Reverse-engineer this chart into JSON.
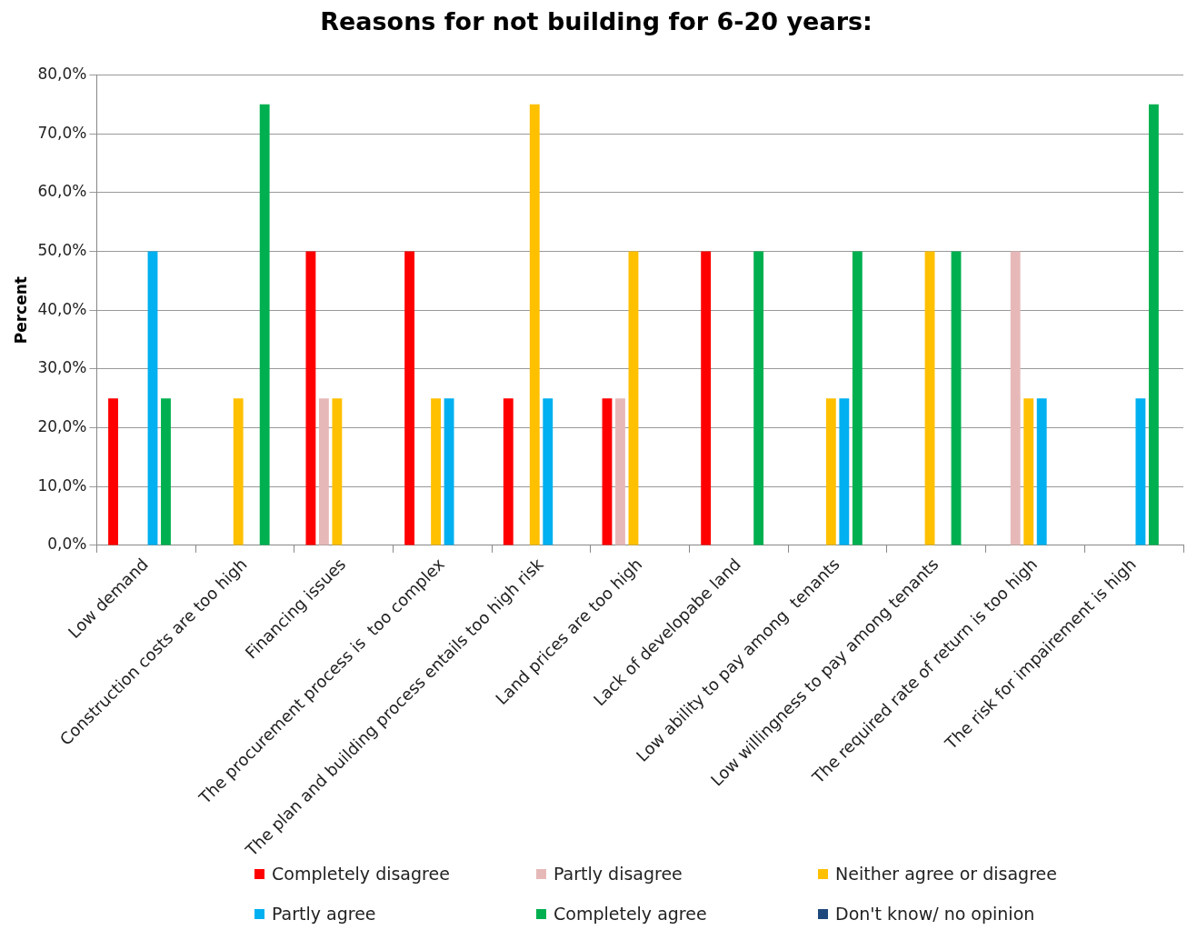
{
  "chart_data": {
    "type": "bar",
    "title": "Reasons for not building for 6-20 years:",
    "ylabel": "Percent",
    "categories": [
      "Low demand",
      "Construction costs are too high",
      "Financing issues",
      "The procurement process is  too complex",
      "The plan and building process entails too high risk",
      "Land prices are too high",
      "Lack of developabe land",
      "Low ability to pay among  tenants",
      "Low willingness to pay among tenants",
      "The required rate of return is too high",
      "The risk for impairement is high"
    ],
    "series": [
      {
        "name": "Completely disagree",
        "color": "#ff0000",
        "values": [
          25,
          0,
          50,
          50,
          25,
          25,
          50,
          0,
          0,
          0,
          0
        ]
      },
      {
        "name": "Partly disagree",
        "color": "#e6b9b8",
        "values": [
          0,
          0,
          25,
          0,
          0,
          25,
          0,
          0,
          0,
          50,
          0
        ]
      },
      {
        "name": "Neither agree or disagree",
        "color": "#ffc000",
        "values": [
          0,
          25,
          25,
          25,
          75,
          50,
          0,
          25,
          50,
          25,
          0
        ]
      },
      {
        "name": "Partly agree",
        "color": "#00b0f0",
        "values": [
          50,
          0,
          0,
          25,
          25,
          0,
          0,
          25,
          0,
          25,
          25
        ]
      },
      {
        "name": "Completely agree",
        "color": "#00b050",
        "values": [
          25,
          75,
          0,
          0,
          0,
          0,
          50,
          50,
          50,
          0,
          75
        ]
      },
      {
        "name": "Don't know/ no opinion",
        "color": "#1f497d",
        "values": [
          0,
          0,
          0,
          0,
          0,
          0,
          0,
          0,
          0,
          0,
          0
        ]
      }
    ],
    "ylim": [
      0,
      80
    ],
    "yticks": [
      {
        "value": 0,
        "label": "0,0%"
      },
      {
        "value": 10,
        "label": "10,0%"
      },
      {
        "value": 20,
        "label": "20,0%"
      },
      {
        "value": 30,
        "label": "30,0%"
      },
      {
        "value": 40,
        "label": "40,0%"
      },
      {
        "value": 50,
        "label": "50,0%"
      },
      {
        "value": 60,
        "label": "60,0%"
      },
      {
        "value": 70,
        "label": "70,0%"
      },
      {
        "value": 80,
        "label": "80,0%"
      }
    ],
    "grid": "y",
    "legend": "bottom"
  }
}
